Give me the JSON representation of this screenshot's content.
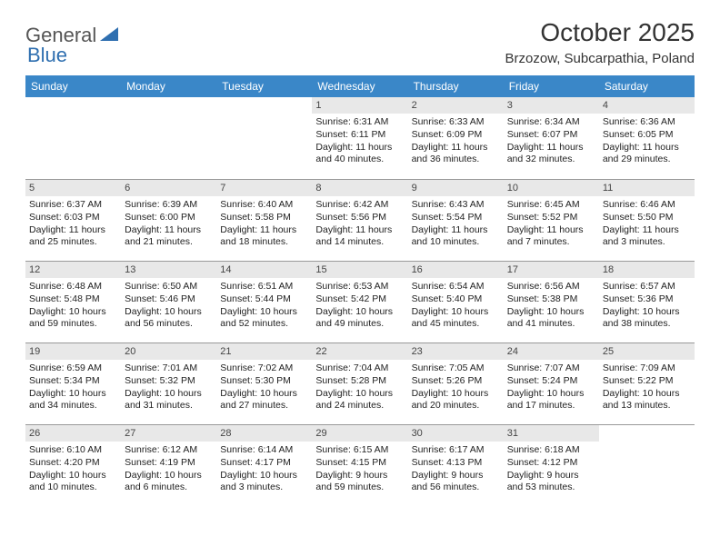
{
  "logo": {
    "general": "General",
    "blue": "Blue"
  },
  "title": {
    "month_year": "October 2025",
    "location": "Brzozow, Subcarpathia, Poland"
  },
  "colors": {
    "header_bg": "#3a87c8",
    "header_text": "#ffffff",
    "daynum_bg": "#e8e8e8",
    "border": "#999999",
    "logo_blue": "#2f6fb0",
    "logo_gray": "#555555"
  },
  "weekdays": [
    "Sunday",
    "Monday",
    "Tuesday",
    "Wednesday",
    "Thursday",
    "Friday",
    "Saturday"
  ],
  "weeks": [
    [
      {
        "n": "",
        "sr": "",
        "ss": "",
        "dl": ""
      },
      {
        "n": "",
        "sr": "",
        "ss": "",
        "dl": ""
      },
      {
        "n": "",
        "sr": "",
        "ss": "",
        "dl": ""
      },
      {
        "n": "1",
        "sr": "Sunrise: 6:31 AM",
        "ss": "Sunset: 6:11 PM",
        "dl": "Daylight: 11 hours and 40 minutes."
      },
      {
        "n": "2",
        "sr": "Sunrise: 6:33 AM",
        "ss": "Sunset: 6:09 PM",
        "dl": "Daylight: 11 hours and 36 minutes."
      },
      {
        "n": "3",
        "sr": "Sunrise: 6:34 AM",
        "ss": "Sunset: 6:07 PM",
        "dl": "Daylight: 11 hours and 32 minutes."
      },
      {
        "n": "4",
        "sr": "Sunrise: 6:36 AM",
        "ss": "Sunset: 6:05 PM",
        "dl": "Daylight: 11 hours and 29 minutes."
      }
    ],
    [
      {
        "n": "5",
        "sr": "Sunrise: 6:37 AM",
        "ss": "Sunset: 6:03 PM",
        "dl": "Daylight: 11 hours and 25 minutes."
      },
      {
        "n": "6",
        "sr": "Sunrise: 6:39 AM",
        "ss": "Sunset: 6:00 PM",
        "dl": "Daylight: 11 hours and 21 minutes."
      },
      {
        "n": "7",
        "sr": "Sunrise: 6:40 AM",
        "ss": "Sunset: 5:58 PM",
        "dl": "Daylight: 11 hours and 18 minutes."
      },
      {
        "n": "8",
        "sr": "Sunrise: 6:42 AM",
        "ss": "Sunset: 5:56 PM",
        "dl": "Daylight: 11 hours and 14 minutes."
      },
      {
        "n": "9",
        "sr": "Sunrise: 6:43 AM",
        "ss": "Sunset: 5:54 PM",
        "dl": "Daylight: 11 hours and 10 minutes."
      },
      {
        "n": "10",
        "sr": "Sunrise: 6:45 AM",
        "ss": "Sunset: 5:52 PM",
        "dl": "Daylight: 11 hours and 7 minutes."
      },
      {
        "n": "11",
        "sr": "Sunrise: 6:46 AM",
        "ss": "Sunset: 5:50 PM",
        "dl": "Daylight: 11 hours and 3 minutes."
      }
    ],
    [
      {
        "n": "12",
        "sr": "Sunrise: 6:48 AM",
        "ss": "Sunset: 5:48 PM",
        "dl": "Daylight: 10 hours and 59 minutes."
      },
      {
        "n": "13",
        "sr": "Sunrise: 6:50 AM",
        "ss": "Sunset: 5:46 PM",
        "dl": "Daylight: 10 hours and 56 minutes."
      },
      {
        "n": "14",
        "sr": "Sunrise: 6:51 AM",
        "ss": "Sunset: 5:44 PM",
        "dl": "Daylight: 10 hours and 52 minutes."
      },
      {
        "n": "15",
        "sr": "Sunrise: 6:53 AM",
        "ss": "Sunset: 5:42 PM",
        "dl": "Daylight: 10 hours and 49 minutes."
      },
      {
        "n": "16",
        "sr": "Sunrise: 6:54 AM",
        "ss": "Sunset: 5:40 PM",
        "dl": "Daylight: 10 hours and 45 minutes."
      },
      {
        "n": "17",
        "sr": "Sunrise: 6:56 AM",
        "ss": "Sunset: 5:38 PM",
        "dl": "Daylight: 10 hours and 41 minutes."
      },
      {
        "n": "18",
        "sr": "Sunrise: 6:57 AM",
        "ss": "Sunset: 5:36 PM",
        "dl": "Daylight: 10 hours and 38 minutes."
      }
    ],
    [
      {
        "n": "19",
        "sr": "Sunrise: 6:59 AM",
        "ss": "Sunset: 5:34 PM",
        "dl": "Daylight: 10 hours and 34 minutes."
      },
      {
        "n": "20",
        "sr": "Sunrise: 7:01 AM",
        "ss": "Sunset: 5:32 PM",
        "dl": "Daylight: 10 hours and 31 minutes."
      },
      {
        "n": "21",
        "sr": "Sunrise: 7:02 AM",
        "ss": "Sunset: 5:30 PM",
        "dl": "Daylight: 10 hours and 27 minutes."
      },
      {
        "n": "22",
        "sr": "Sunrise: 7:04 AM",
        "ss": "Sunset: 5:28 PM",
        "dl": "Daylight: 10 hours and 24 minutes."
      },
      {
        "n": "23",
        "sr": "Sunrise: 7:05 AM",
        "ss": "Sunset: 5:26 PM",
        "dl": "Daylight: 10 hours and 20 minutes."
      },
      {
        "n": "24",
        "sr": "Sunrise: 7:07 AM",
        "ss": "Sunset: 5:24 PM",
        "dl": "Daylight: 10 hours and 17 minutes."
      },
      {
        "n": "25",
        "sr": "Sunrise: 7:09 AM",
        "ss": "Sunset: 5:22 PM",
        "dl": "Daylight: 10 hours and 13 minutes."
      }
    ],
    [
      {
        "n": "26",
        "sr": "Sunrise: 6:10 AM",
        "ss": "Sunset: 4:20 PM",
        "dl": "Daylight: 10 hours and 10 minutes."
      },
      {
        "n": "27",
        "sr": "Sunrise: 6:12 AM",
        "ss": "Sunset: 4:19 PM",
        "dl": "Daylight: 10 hours and 6 minutes."
      },
      {
        "n": "28",
        "sr": "Sunrise: 6:14 AM",
        "ss": "Sunset: 4:17 PM",
        "dl": "Daylight: 10 hours and 3 minutes."
      },
      {
        "n": "29",
        "sr": "Sunrise: 6:15 AM",
        "ss": "Sunset: 4:15 PM",
        "dl": "Daylight: 9 hours and 59 minutes."
      },
      {
        "n": "30",
        "sr": "Sunrise: 6:17 AM",
        "ss": "Sunset: 4:13 PM",
        "dl": "Daylight: 9 hours and 56 minutes."
      },
      {
        "n": "31",
        "sr": "Sunrise: 6:18 AM",
        "ss": "Sunset: 4:12 PM",
        "dl": "Daylight: 9 hours and 53 minutes."
      },
      {
        "n": "",
        "sr": "",
        "ss": "",
        "dl": ""
      }
    ]
  ]
}
